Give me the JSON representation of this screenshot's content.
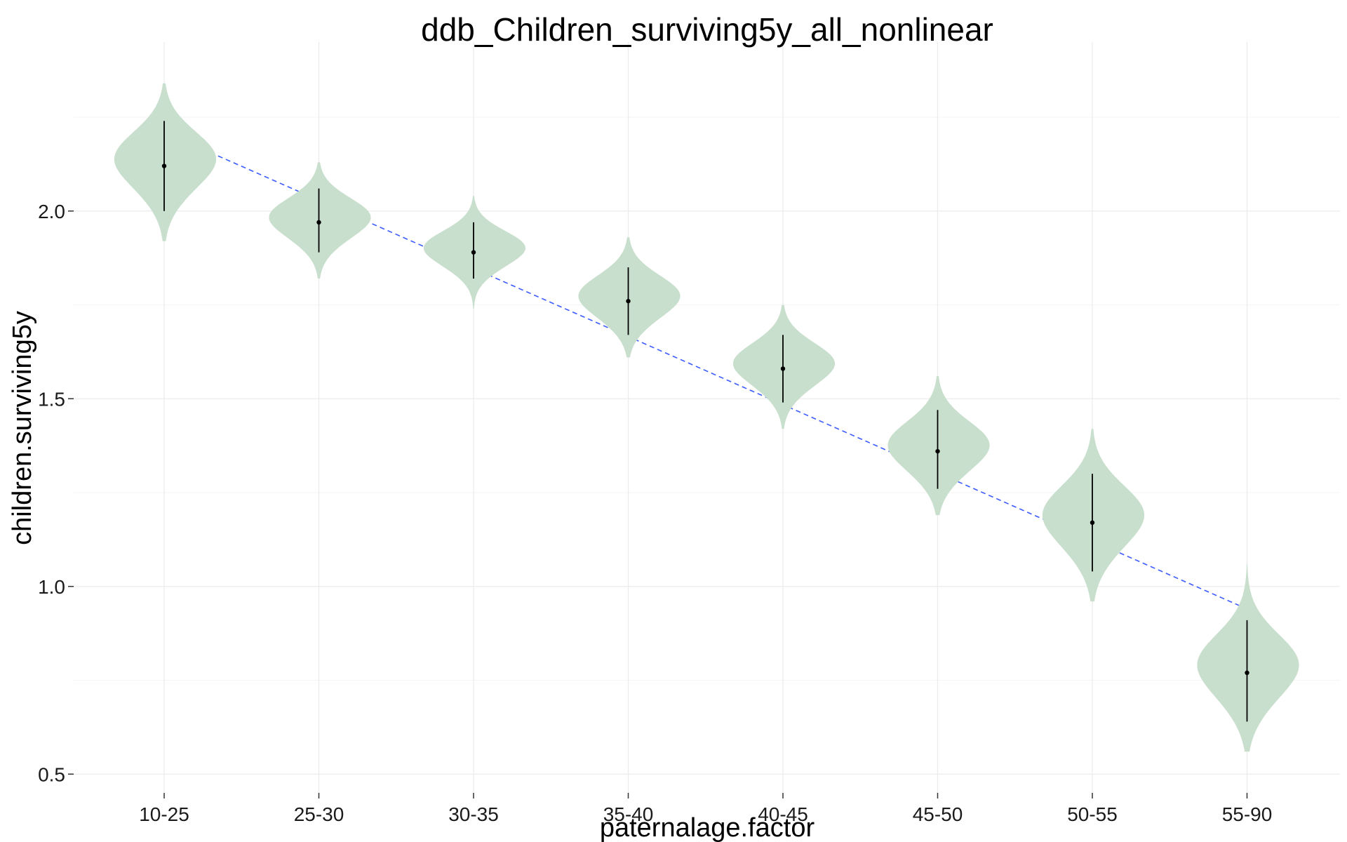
{
  "chart_data": {
    "type": "violin",
    "title": "ddb_Children_surviving5y_all_nonlinear",
    "xlabel": "paternalage.factor",
    "ylabel": "children.surviving5y",
    "categories": [
      "10-25",
      "25-30",
      "30-35",
      "35-40",
      "40-45",
      "45-50",
      "50-55",
      "55-90"
    ],
    "ylim": [
      0.45,
      2.45
    ],
    "y_ticks": [
      0.5,
      1.0,
      1.5,
      2.0
    ],
    "y_tick_labels": [
      "0.5",
      "1.0",
      "1.5",
      "2.0"
    ],
    "series": [
      {
        "values": [
          2.12,
          1.97,
          1.89,
          1.76,
          1.58,
          1.36,
          1.17,
          0.77
        ],
        "ci_low": [
          2.0,
          1.89,
          1.82,
          1.67,
          1.49,
          1.26,
          1.04,
          0.64
        ],
        "ci_high": [
          2.24,
          2.06,
          1.97,
          1.85,
          1.67,
          1.47,
          1.3,
          0.91
        ],
        "dist_min": [
          1.92,
          1.82,
          1.74,
          1.61,
          1.42,
          1.19,
          0.96,
          0.56
        ],
        "dist_max": [
          2.34,
          2.13,
          2.04,
          1.93,
          1.75,
          1.56,
          1.42,
          1.06
        ]
      }
    ],
    "trend_line": {
      "start": {
        "x": "10-25",
        "y": 2.21
      },
      "end": {
        "x": "55-90",
        "y": 0.94
      },
      "style": "dashed",
      "color": "#3b5bff"
    },
    "violin_color": "#c9dfcd",
    "grid": true,
    "legend": "none"
  }
}
